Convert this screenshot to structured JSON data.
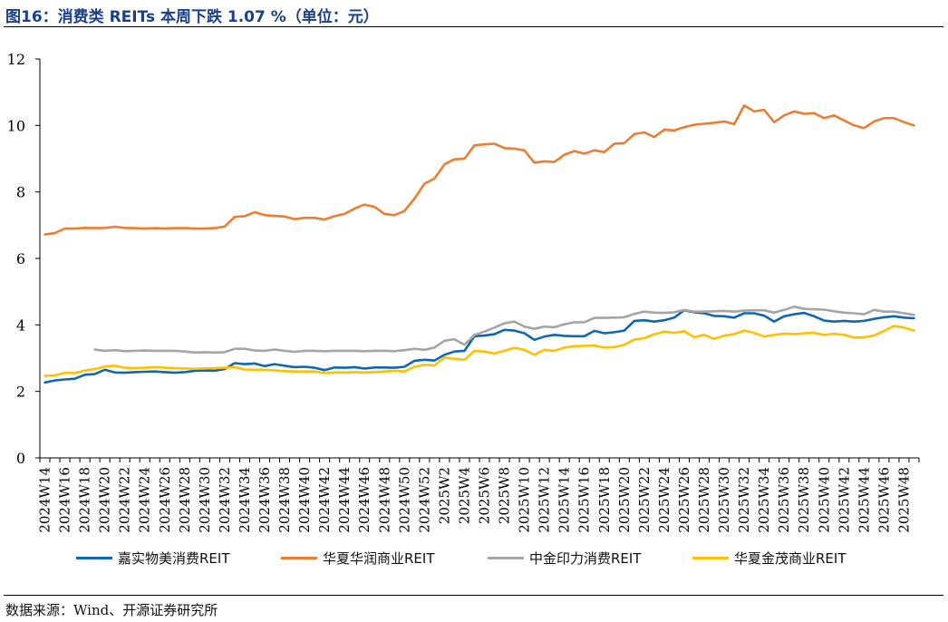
{
  "title": "图16：消费类 REITs 本周下跌 1.07 %（单位：元）",
  "source": "数据来源：Wind、开源证券研究所",
  "chart_data": {
    "type": "line",
    "title": "图16：消费类 REITs 本周下跌 1.07 %（单位：元）",
    "xlabel": "",
    "ylabel": "",
    "ylim": [
      0,
      12
    ],
    "yticks": [
      0,
      2,
      4,
      6,
      8,
      10,
      12
    ],
    "grid": false,
    "legend_position": "bottom",
    "x": [
      "2024W14",
      "2024W15",
      "2024W16",
      "2024W17",
      "2024W18",
      "2024W19",
      "2024W20",
      "2024W21",
      "2024W22",
      "2024W23",
      "2024W24",
      "2024W25",
      "2024W26",
      "2024W27",
      "2024W28",
      "2024W29",
      "2024W30",
      "2024W31",
      "2024W32",
      "2024W33",
      "2024W34",
      "2024W35",
      "2024W36",
      "2024W37",
      "2024W38",
      "2024W39",
      "2024W40",
      "2024W41",
      "2024W42",
      "2024W43",
      "2024W44",
      "2024W45",
      "2024W46",
      "2024W47",
      "2024W48",
      "2024W49",
      "2024W50",
      "2024W51",
      "2024W52",
      "2025W1",
      "2025W2",
      "2025W3",
      "2025W4",
      "2025W5",
      "2025W6",
      "2025W7",
      "2025W8",
      "2025W9",
      "2025W10",
      "2025W11",
      "2025W12",
      "2025W13",
      "2025W14",
      "2025W15",
      "2025W16",
      "2025W17",
      "2025W18",
      "2025W19",
      "2025W20",
      "2025W21",
      "2025W22",
      "2025W23",
      "2025W24",
      "2025W25",
      "2025W26",
      "2025W27",
      "2025W28",
      "2025W29",
      "2025W30",
      "2025W31",
      "2025W32",
      "2025W33",
      "2025W34",
      "2025W35",
      "2025W36",
      "2025W37",
      "2025W38",
      "2025W39",
      "2025W40",
      "2025W41",
      "2025W42",
      "2025W43",
      "2025W44",
      "2025W45",
      "2025W46",
      "2025W47",
      "2025W48",
      "2025W49"
    ],
    "xtick_labels": [
      "2024W14",
      "2024W16",
      "2024W18",
      "2024W20",
      "2024W22",
      "2024W24",
      "2024W26",
      "2024W28",
      "2024W30",
      "2024W32",
      "2024W34",
      "2024W36",
      "2024W38",
      "2024W40",
      "2024W42",
      "2024W44",
      "2024W46",
      "2024W48",
      "2024W50",
      "2024W52",
      "2025W2",
      "2025W4",
      "2025W6",
      "2025W8",
      "2025W10",
      "2025W12",
      "2025W14",
      "2025W16",
      "2025W18",
      "2025W20",
      "2025W22",
      "2025W24",
      "2025W26",
      "2025W28",
      "2025W30",
      "2025W32",
      "2025W34",
      "2025W36",
      "2025W38",
      "2025W40",
      "2025W42",
      "2025W44",
      "2025W46",
      "2025W48"
    ],
    "series": [
      {
        "name": "嘉实物美消费REIT",
        "color": "#0f67b1",
        "values": [
          2.27,
          2.33,
          2.36,
          2.38,
          2.5,
          2.52,
          2.65,
          2.57,
          2.56,
          2.58,
          2.59,
          2.6,
          2.58,
          2.56,
          2.58,
          2.62,
          2.63,
          2.62,
          2.67,
          2.85,
          2.82,
          2.84,
          2.76,
          2.82,
          2.77,
          2.73,
          2.74,
          2.71,
          2.64,
          2.72,
          2.71,
          2.73,
          2.69,
          2.72,
          2.72,
          2.71,
          2.74,
          2.92,
          2.95,
          2.93,
          3.1,
          3.2,
          3.22,
          3.66,
          3.68,
          3.72,
          3.85,
          3.83,
          3.75,
          3.55,
          3.65,
          3.7,
          3.67,
          3.66,
          3.66,
          3.82,
          3.75,
          3.78,
          3.83,
          4.12,
          4.14,
          4.1,
          4.14,
          4.22,
          4.44,
          4.38,
          4.35,
          4.27,
          4.26,
          4.22,
          4.35,
          4.35,
          4.28,
          4.1,
          4.26,
          4.32,
          4.36,
          4.26,
          4.13,
          4.1,
          4.12,
          4.1,
          4.12,
          4.18,
          4.23,
          4.26,
          4.22,
          4.2
        ]
      },
      {
        "name": "华夏华润商业REIT",
        "color": "#ed7d31",
        "values": [
          6.72,
          6.76,
          6.9,
          6.9,
          6.92,
          6.91,
          6.92,
          6.95,
          6.92,
          6.91,
          6.9,
          6.91,
          6.9,
          6.91,
          6.91,
          6.9,
          6.9,
          6.91,
          6.96,
          7.25,
          7.27,
          7.39,
          7.3,
          7.28,
          7.26,
          7.18,
          7.22,
          7.22,
          7.17,
          7.27,
          7.34,
          7.5,
          7.62,
          7.55,
          7.34,
          7.3,
          7.43,
          7.8,
          8.25,
          8.4,
          8.83,
          8.98,
          9.0,
          9.4,
          9.43,
          9.45,
          9.32,
          9.3,
          9.25,
          8.88,
          8.92,
          8.9,
          9.12,
          9.23,
          9.15,
          9.25,
          9.2,
          9.45,
          9.47,
          9.74,
          9.79,
          9.65,
          9.87,
          9.85,
          9.95,
          10.02,
          10.05,
          10.08,
          10.12,
          10.04,
          10.6,
          10.42,
          10.47,
          10.1,
          10.3,
          10.42,
          10.35,
          10.37,
          10.22,
          10.3,
          10.15,
          10.0,
          9.92,
          10.12,
          10.22,
          10.22,
          10.1,
          10.0
        ]
      },
      {
        "name": "中金印力消费REIT",
        "color": "#a5a5a5",
        "values": [
          null,
          null,
          null,
          null,
          null,
          3.26,
          3.22,
          3.24,
          3.21,
          3.22,
          3.23,
          3.22,
          3.22,
          3.22,
          3.2,
          3.17,
          3.18,
          3.17,
          3.18,
          3.28,
          3.28,
          3.23,
          3.22,
          3.26,
          3.22,
          3.19,
          3.22,
          3.22,
          3.21,
          3.22,
          3.22,
          3.22,
          3.21,
          3.22,
          3.22,
          3.21,
          3.24,
          3.28,
          3.25,
          3.32,
          3.52,
          3.57,
          3.4,
          3.7,
          3.8,
          3.92,
          4.05,
          4.1,
          3.95,
          3.88,
          3.95,
          3.93,
          4.02,
          4.08,
          4.08,
          4.21,
          4.21,
          4.22,
          4.23,
          4.33,
          4.4,
          4.37,
          4.36,
          4.38,
          4.45,
          4.4,
          4.4,
          4.41,
          4.42,
          4.4,
          4.43,
          4.44,
          4.44,
          4.37,
          4.45,
          4.55,
          4.48,
          4.47,
          4.46,
          4.41,
          4.37,
          4.35,
          4.32,
          4.45,
          4.4,
          4.4,
          4.35,
          4.3
        ]
      },
      {
        "name": "华夏金茂商业REIT",
        "color": "#ffc000",
        "values": [
          2.47,
          2.48,
          2.56,
          2.55,
          2.63,
          2.67,
          2.75,
          2.77,
          2.71,
          2.7,
          2.71,
          2.73,
          2.71,
          2.7,
          2.69,
          2.68,
          2.69,
          2.7,
          2.71,
          2.73,
          2.66,
          2.65,
          2.65,
          2.63,
          2.61,
          2.6,
          2.6,
          2.6,
          2.55,
          2.57,
          2.57,
          2.58,
          2.57,
          2.58,
          2.6,
          2.62,
          2.6,
          2.74,
          2.8,
          2.78,
          3.02,
          2.98,
          2.95,
          3.22,
          3.2,
          3.14,
          3.22,
          3.31,
          3.25,
          3.1,
          3.25,
          3.22,
          3.32,
          3.36,
          3.37,
          3.38,
          3.32,
          3.33,
          3.4,
          3.56,
          3.6,
          3.72,
          3.8,
          3.76,
          3.81,
          3.63,
          3.7,
          3.58,
          3.68,
          3.72,
          3.83,
          3.76,
          3.65,
          3.7,
          3.74,
          3.72,
          3.75,
          3.76,
          3.7,
          3.73,
          3.7,
          3.62,
          3.63,
          3.68,
          3.82,
          3.97,
          3.92,
          3.83
        ]
      }
    ]
  }
}
